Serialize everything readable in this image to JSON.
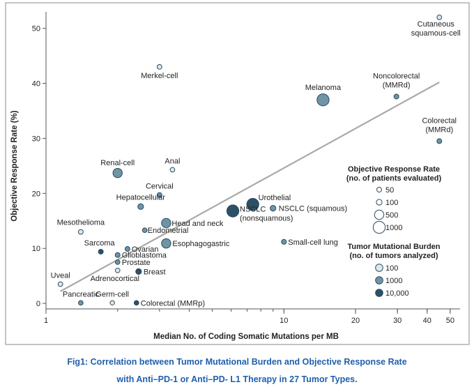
{
  "chart_data": {
    "type": "scatter",
    "x_scale": "log",
    "xlabel": "Median No. of Coding Somatic Mutations per MB",
    "ylabel": "Objective Response Rate (%)",
    "xlim": [
      1,
      55
    ],
    "ylim": [
      -1,
      53
    ],
    "x_ticks": [
      1,
      10,
      20,
      30,
      40,
      50
    ],
    "x_tick_labels": [
      "1",
      "10",
      "20",
      "30",
      "40",
      "50"
    ],
    "y_ticks": [
      0,
      10,
      20,
      30,
      40,
      50
    ],
    "y_tick_labels": [
      "0",
      "10",
      "20",
      "30",
      "40",
      "50"
    ],
    "grid": false,
    "legend_position": "right",
    "colors": {
      "fill_100": "#dde8ee",
      "fill_1000": "#6f94a6",
      "fill_10000": "#2c5068",
      "stroke": "#2c4a5e",
      "trend_line": "#a9a9a9"
    },
    "trend_line": {
      "x": [
        1.15,
        45
      ],
      "y": [
        2.2,
        40.2
      ]
    },
    "points": [
      {
        "label": "Cutaneous\nsquamous-cell",
        "x": 45,
        "y": 52,
        "patients": 40,
        "tumors": 100
      },
      {
        "label": "Merkel-cell",
        "x": 3.0,
        "y": 43,
        "patients": 45,
        "tumors": 100
      },
      {
        "label": "Melanoma",
        "x": 14.6,
        "y": 37,
        "patients": 1000,
        "tumors": 1000
      },
      {
        "label": "Noncolorectal\n(MMRd)",
        "x": 29.7,
        "y": 37.6,
        "patients": 50,
        "tumors": 1000
      },
      {
        "label": "Colorectal\n(MMRd)",
        "x": 45,
        "y": 29.5,
        "patients": 50,
        "tumors": 1000
      },
      {
        "label": "Anal",
        "x": 3.4,
        "y": 24.3,
        "patients": 40,
        "tumors": 100
      },
      {
        "label": "Renal-cell",
        "x": 2.0,
        "y": 23.7,
        "patients": 500,
        "tumors": 1000
      },
      {
        "label": "Cervical",
        "x": 3.0,
        "y": 19.7,
        "patients": 50,
        "tumors": 1000
      },
      {
        "label": "Hepatocellular",
        "x": 2.5,
        "y": 17.6,
        "patients": 100,
        "tumors": 1000
      },
      {
        "label": "Urothelial",
        "x": 7.4,
        "y": 18.0,
        "patients": 1000,
        "tumors": 10000
      },
      {
        "label": "NSCLC (squamous)",
        "x": 9.0,
        "y": 17.3,
        "patients": 100,
        "tumors": 1000
      },
      {
        "label": "NSCLC\n(nonsquamous)",
        "x": 6.1,
        "y": 16.8,
        "patients": 1000,
        "tumors": 10000
      },
      {
        "label": "Mesothelioma",
        "x": 1.4,
        "y": 13.0,
        "patients": 50,
        "tumors": 100
      },
      {
        "label": "Head and neck",
        "x": 3.2,
        "y": 14.6,
        "patients": 500,
        "tumors": 1000
      },
      {
        "label": "Endometrial",
        "x": 2.6,
        "y": 13.3,
        "patients": 40,
        "tumors": 1000
      },
      {
        "label": "Esophagogastric",
        "x": 3.2,
        "y": 10.9,
        "patients": 500,
        "tumors": 1000
      },
      {
        "label": "Small-cell lung",
        "x": 10.0,
        "y": 11.2,
        "patients": 50,
        "tumors": 1000
      },
      {
        "label": "Sarcoma",
        "x": 1.7,
        "y": 9.4,
        "patients": 50,
        "tumors": 10000
      },
      {
        "label": "Ovarian",
        "x": 2.2,
        "y": 9.9,
        "patients": 50,
        "tumors": 1000
      },
      {
        "label": "Glioblastoma",
        "x": 2.0,
        "y": 8.8,
        "patients": 50,
        "tumors": 1000
      },
      {
        "label": "Prostate",
        "x": 2.0,
        "y": 7.5,
        "patients": 40,
        "tumors": 1000
      },
      {
        "label": "Adrenocortical",
        "x": 2.0,
        "y": 6.0,
        "patients": 40,
        "tumors": 100
      },
      {
        "label": "Breast",
        "x": 2.45,
        "y": 5.8,
        "patients": 100,
        "tumors": 10000
      },
      {
        "label": "Uveal",
        "x": 1.15,
        "y": 3.5,
        "patients": 40,
        "tumors": 100
      },
      {
        "label": "Pancreatic",
        "x": 1.4,
        "y": 0.1,
        "patients": 40,
        "tumors": 1000
      },
      {
        "label": "Germ-cell",
        "x": 1.9,
        "y": 0.1,
        "patients": 30,
        "tumors": 100
      },
      {
        "label": "Colorectal (MMRp)",
        "x": 2.4,
        "y": 0.1,
        "patients": 40,
        "tumors": 10000
      }
    ],
    "legend_response_rate": {
      "title_line1": "Objective Response Rate",
      "title_line2": "(no. of patients evaluated)",
      "entries": [
        "50",
        "100",
        "500",
        "1000"
      ]
    },
    "legend_mutational_burden": {
      "title_line1": "Tumor Mutational Burden",
      "title_line2": "(no. of tumors analyzed)",
      "entries": [
        "100",
        "1000",
        "10,000"
      ]
    }
  },
  "caption": {
    "line1": "Fig1:  Correlation between Tumor Mutational Burden and Objective Response Rate",
    "line2": "with Anti–PD-1 or Anti–PD- L1 Therapy in 27 Tumor Types."
  }
}
